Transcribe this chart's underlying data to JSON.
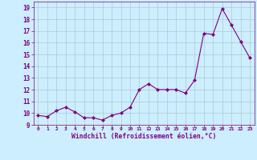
{
  "x": [
    0,
    1,
    2,
    3,
    4,
    5,
    6,
    7,
    8,
    9,
    10,
    11,
    12,
    13,
    14,
    15,
    16,
    17,
    18,
    19,
    20,
    21,
    22,
    23
  ],
  "y": [
    9.8,
    9.7,
    10.2,
    10.5,
    10.1,
    9.6,
    9.6,
    9.4,
    9.8,
    10.0,
    10.5,
    12.0,
    12.5,
    12.0,
    12.0,
    12.0,
    11.7,
    12.8,
    16.8,
    16.7,
    18.9,
    17.5,
    16.1,
    14.7
  ],
  "line_color": "#800080",
  "marker": "D",
  "marker_size": 2,
  "bg_color": "#cceeff",
  "grid_color": "#aacccc",
  "axis_label_color": "#800080",
  "tick_color": "#800080",
  "xlabel": "Windchill (Refroidissement éolien,°C)",
  "xlim": [
    -0.5,
    23.5
  ],
  "ylim": [
    9.0,
    19.5
  ],
  "yticks": [
    9,
    10,
    11,
    12,
    13,
    14,
    15,
    16,
    17,
    18,
    19
  ],
  "xticks": [
    0,
    1,
    2,
    3,
    4,
    5,
    6,
    7,
    8,
    9,
    10,
    11,
    12,
    13,
    14,
    15,
    16,
    17,
    18,
    19,
    20,
    21,
    22,
    23
  ]
}
